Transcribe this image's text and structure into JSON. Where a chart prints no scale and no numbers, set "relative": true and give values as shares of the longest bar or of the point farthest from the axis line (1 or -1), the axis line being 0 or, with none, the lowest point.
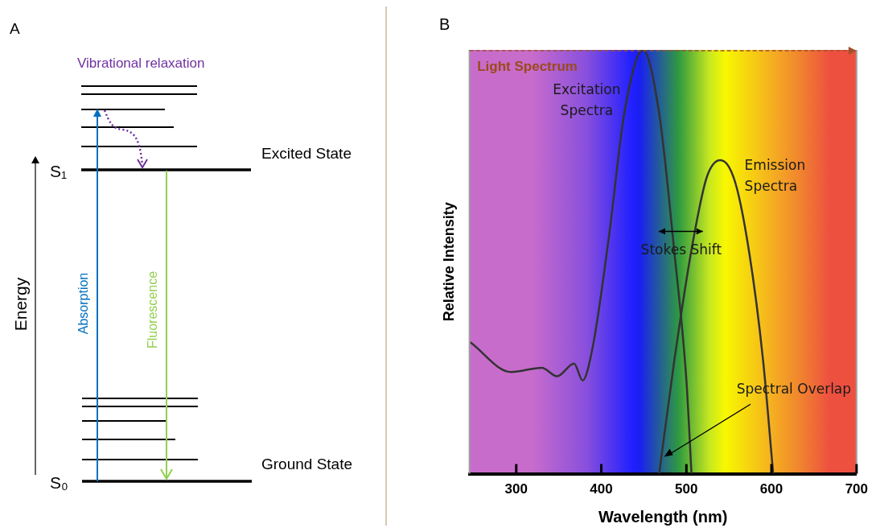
{
  "chart_data": [
    {
      "type": "other",
      "title": "A",
      "ylabel": "Energy",
      "annotations": [
        "Vibrational relaxation",
        "Excited State",
        "S₁",
        "Ground State",
        "S₀",
        "Absorption",
        "Fluorescence"
      ]
    },
    {
      "type": "line",
      "title": "B",
      "xlabel": "Wavelength (nm)",
      "ylabel": "Relative Intensity",
      "relative": true,
      "marker": "none",
      "xlim": [
        245,
        700
      ],
      "xticks": [
        300,
        400,
        500,
        600,
        700
      ],
      "series": [
        {
          "name": "Excitation Spectra",
          "color": "#333333",
          "x": [
            246,
            294,
            330,
            348,
            368,
            378,
            390,
            409,
            427,
            449,
            468,
            486,
            500,
            506
          ],
          "values": [
            0.31,
            0.24,
            0.25,
            0.23,
            0.26,
            0.22,
            0.3,
            0.56,
            0.85,
            1,
            0.85,
            0.52,
            0.22,
            0
          ]
        },
        {
          "name": "Emission Spectra",
          "color": "#333333",
          "x": [
            468,
            486,
            507,
            524,
            540,
            557,
            574,
            590,
            602
          ],
          "values": [
            0,
            0.27,
            0.54,
            0.7,
            0.74,
            0.69,
            0.52,
            0.27,
            0
          ]
        }
      ],
      "annotations": [
        "Light Spectrum",
        "Stokes Shift",
        "Spectral Overlap"
      ]
    }
  ]
}
